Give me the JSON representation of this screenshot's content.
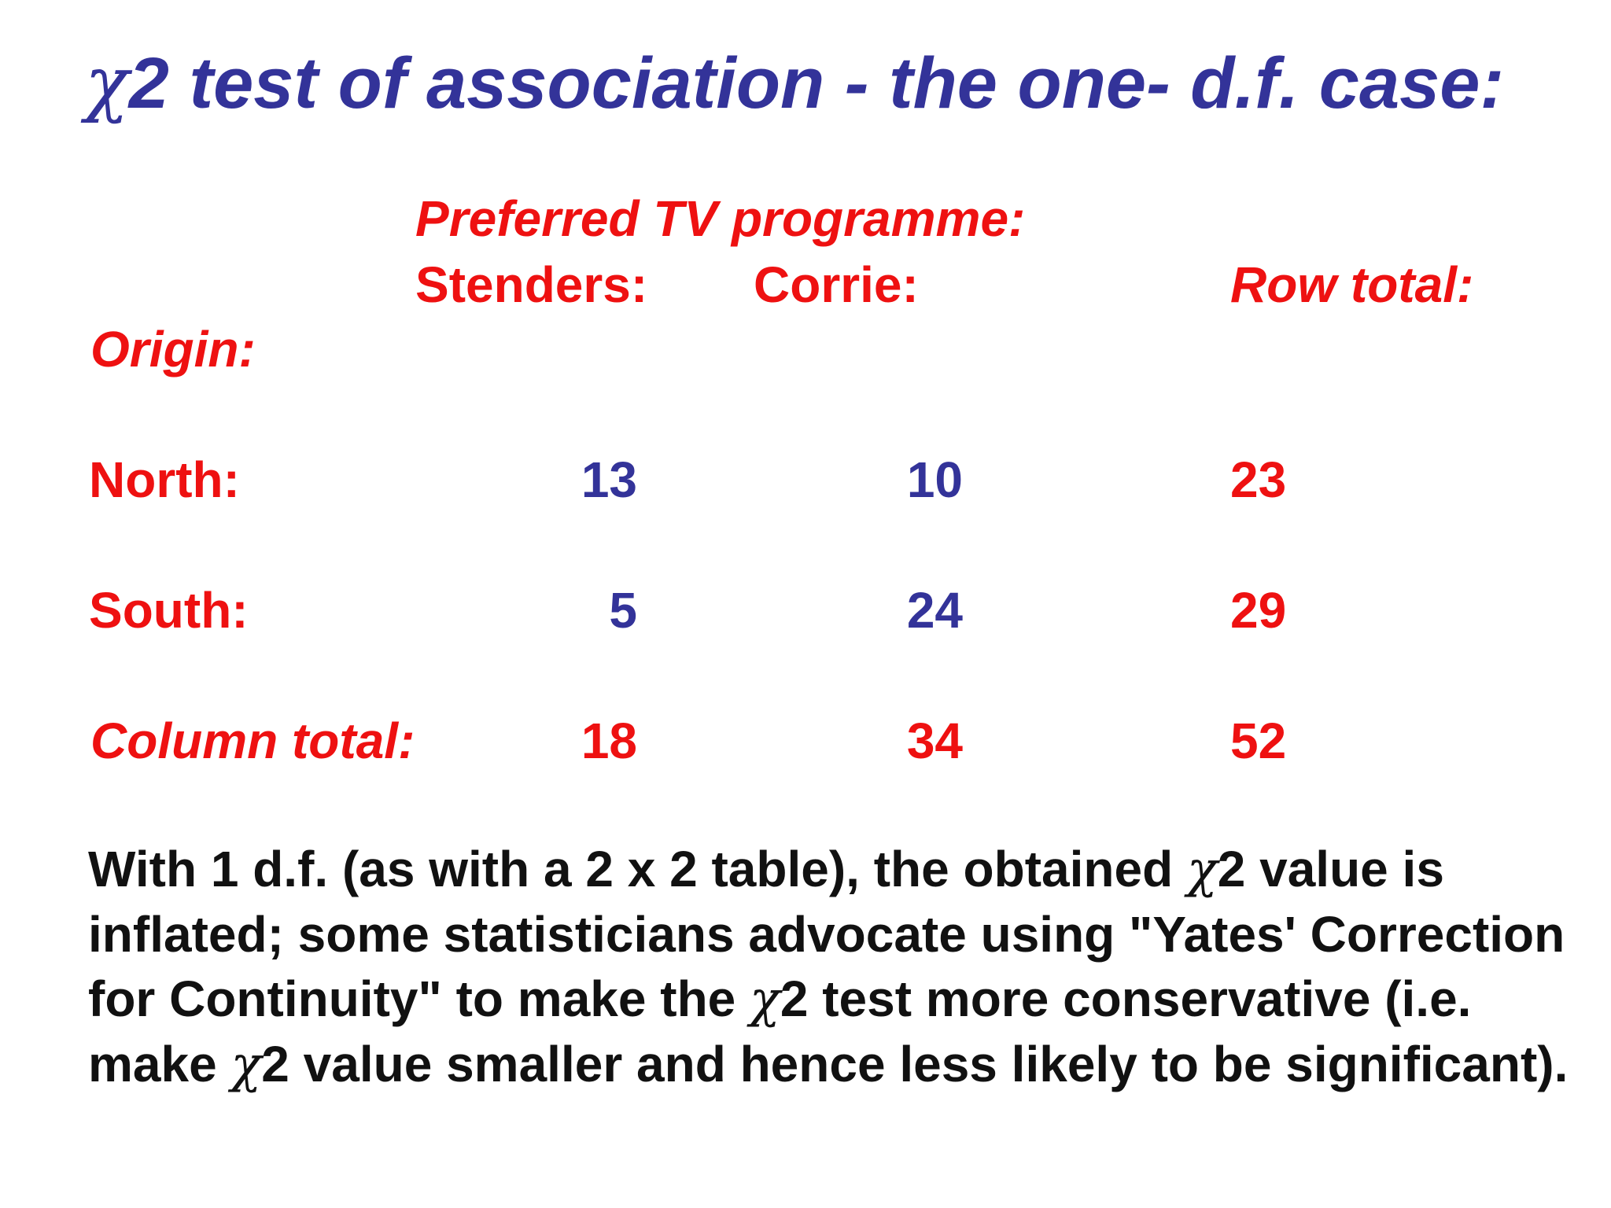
{
  "title": {
    "chi_symbol": "χ",
    "text": "2 test of association - the one- d.f. case:"
  },
  "table": {
    "group_header": "Preferred TV programme:",
    "col_headers": [
      "Stenders:",
      "Corrie:"
    ],
    "row_total_header": "Row total:",
    "row_label_header": "Origin:",
    "rows": [
      {
        "label": "North:",
        "values": [
          "13",
          "10"
        ],
        "total": "23"
      },
      {
        "label": "South:",
        "values": [
          "5",
          "24"
        ],
        "total": "29"
      }
    ],
    "column_total": {
      "label": "Column total:",
      "values": [
        "18",
        "34"
      ],
      "total": "52"
    }
  },
  "paragraph": {
    "part1": "With 1 d.f. (as with a 2 x 2 table), the obtained ",
    "chi1": "χ",
    "part2": "2 value is inflated; some statisticians advocate using \"Yates' Correction for Continuity\" to make the ",
    "chi2": "χ",
    "part3": "2 test more conservative (i.e. make ",
    "chi3": "χ",
    "part4": "2 value smaller and hence less likely to be significant)."
  },
  "colors": {
    "title": "#333399",
    "labels": "#ee1111",
    "values": "#333399",
    "body_text": "#111111"
  }
}
